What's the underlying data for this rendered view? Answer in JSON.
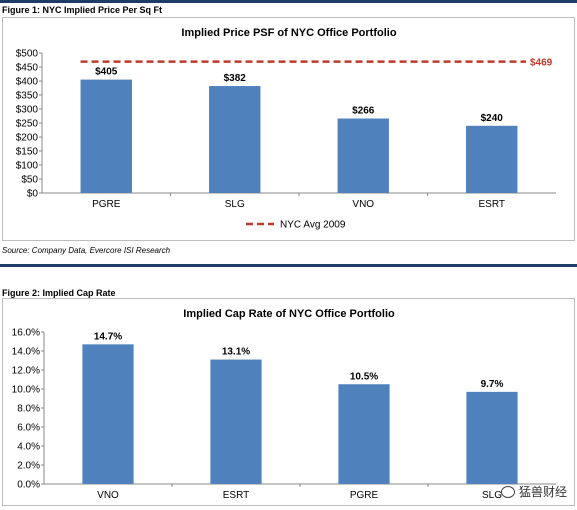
{
  "figure1": {
    "caption": "Figure 1: NYC Implied Price Per Sq Ft",
    "source": "Source: Company Data, Evercore ISI Research",
    "chart_data": {
      "type": "bar",
      "title": "Implied Price PSF of NYC Office Portfolio",
      "categories": [
        "PGRE",
        "SLG",
        "VNO",
        "ESRT"
      ],
      "values": [
        405,
        382,
        266,
        240
      ],
      "data_labels": [
        "$405",
        "$382",
        "$266",
        "$240"
      ],
      "ylim": [
        0,
        500
      ],
      "yticks": [
        0,
        50,
        100,
        150,
        200,
        250,
        300,
        350,
        400,
        450,
        500
      ],
      "ytick_labels": [
        "$0",
        "$50",
        "$100",
        "$150",
        "$200",
        "$250",
        "$300",
        "$350",
        "$400",
        "$450",
        "$500"
      ],
      "reference_line": {
        "name": "NYC Avg 2009",
        "value": 469,
        "label": "$469",
        "color": "#c0392b"
      },
      "bar_color": "#4f81bd",
      "legend_position": "bottom"
    }
  },
  "figure2": {
    "caption": "Figure 2: Implied Cap Rate",
    "chart_data": {
      "type": "bar",
      "title": "Implied Cap Rate of NYC Office Portfolio",
      "categories": [
        "VNO",
        "ESRT",
        "PGRE",
        "SLG"
      ],
      "values": [
        14.7,
        13.1,
        10.5,
        9.7
      ],
      "data_labels": [
        "14.7%",
        "13.1%",
        "10.5%",
        "9.7%"
      ],
      "ylim": [
        0,
        16
      ],
      "yticks": [
        0,
        2,
        4,
        6,
        8,
        10,
        12,
        14,
        16
      ],
      "ytick_labels": [
        "0.0%",
        "2.0%",
        "4.0%",
        "6.0%",
        "8.0%",
        "10.0%",
        "12.0%",
        "14.0%",
        "16.0%"
      ],
      "bar_color": "#4f81bd"
    }
  },
  "watermark": {
    "text": "猛兽财经",
    "icon": "wechat-icon"
  }
}
